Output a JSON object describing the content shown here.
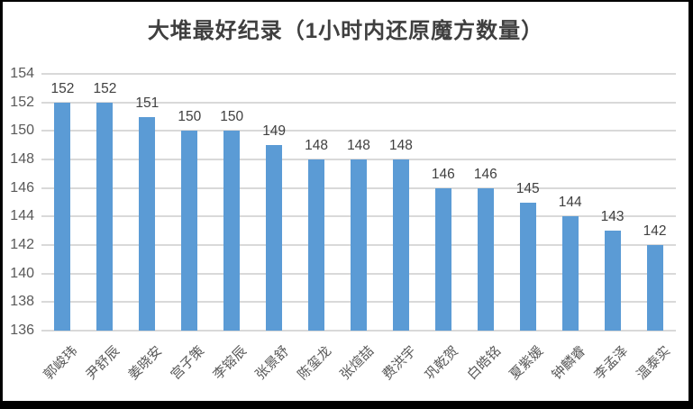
{
  "chart_data": {
    "type": "bar",
    "title": "大堆最好纪录（1小时内还原魔方数量）",
    "categories": [
      "郭峻玮",
      "尹舒辰",
      "姜晓安",
      "宫子策",
      "李镕辰",
      "张景舒",
      "陈玺龙",
      "张煊喆",
      "费洪宇",
      "巩乾贺",
      "白皓铭",
      "夏紫媛",
      "钟麟睿",
      "李孟泽",
      "温泰实"
    ],
    "values": [
      152,
      152,
      151,
      150,
      150,
      149,
      148,
      148,
      148,
      146,
      146,
      145,
      144,
      143,
      142
    ],
    "data_labels": [
      152,
      152,
      151,
      150,
      150,
      149,
      148,
      148,
      148,
      146,
      146,
      145,
      144,
      143,
      142
    ],
    "xlabel": "",
    "ylabel": "",
    "ylim": [
      136,
      154
    ],
    "yticks": [
      154,
      152,
      150,
      148,
      146,
      144,
      142,
      140,
      138,
      136
    ],
    "grid": true,
    "legend": "none",
    "colors": {
      "bar": "#5b9bd5",
      "gridline": "#d9d9d9",
      "title_text": "#3f3f3f",
      "axis_text": "#595959",
      "value_text": "#404040",
      "frame_border": "#000000",
      "background": "#ffffff"
    }
  }
}
